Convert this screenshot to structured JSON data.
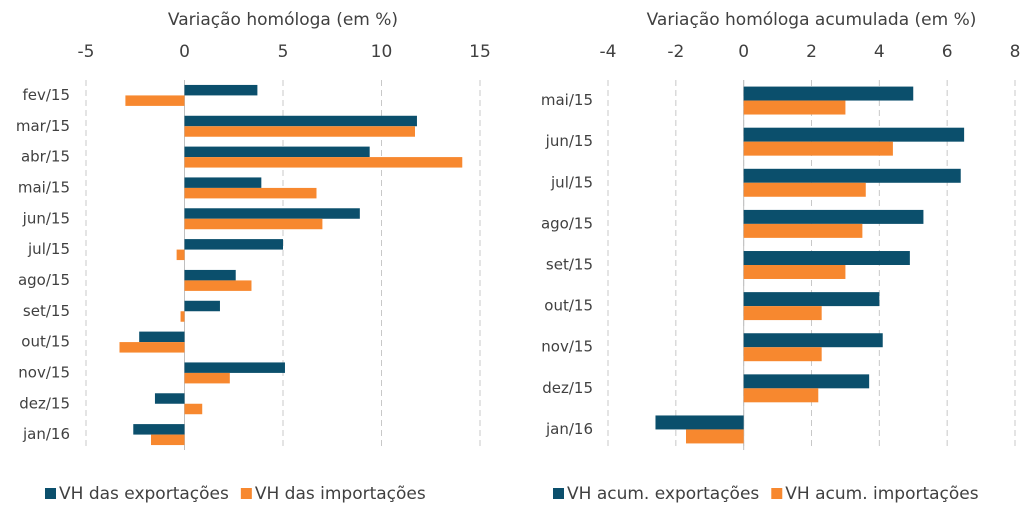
{
  "chart_data": [
    {
      "type": "hbar",
      "x_label": "Variação homóloga (em %)",
      "categories": [
        "fev/15",
        "mar/15",
        "abr/15",
        "mai/15",
        "jun/15",
        "jul/15",
        "ago/15",
        "set/15",
        "out/15",
        "nov/15",
        "dez/15",
        "jan/16"
      ],
      "series": [
        {
          "name": "VH das exportações",
          "color": "#0b4f6c",
          "values": [
            3.7,
            11.8,
            9.4,
            3.9,
            8.9,
            5.0,
            2.6,
            1.8,
            -2.3,
            5.1,
            -1.5,
            -2.6
          ]
        },
        {
          "name": "VH das importações",
          "color": "#f7882f",
          "values": [
            -3.0,
            11.7,
            14.1,
            6.7,
            7.0,
            -0.4,
            3.4,
            -0.2,
            -3.3,
            2.3,
            0.9,
            -1.7
          ]
        }
      ],
      "xlim": [
        -5,
        15
      ],
      "xticks": [
        -5,
        0,
        5,
        10,
        15
      ],
      "grid": true
    },
    {
      "type": "hbar",
      "x_label": "Variação homóloga acumulada (em %)",
      "categories": [
        "mai/15",
        "jun/15",
        "jul/15",
        "ago/15",
        "set/15",
        "out/15",
        "nov/15",
        "dez/15",
        "jan/16"
      ],
      "series": [
        {
          "name": "VH acum. exportações",
          "color": "#0b4f6c",
          "values": [
            5.0,
            6.5,
            6.4,
            5.3,
            4.9,
            4.0,
            4.1,
            3.7,
            -2.6
          ]
        },
        {
          "name": "VH acum. importações",
          "color": "#f7882f",
          "values": [
            3.0,
            4.4,
            3.6,
            3.5,
            3.0,
            2.3,
            2.3,
            2.2,
            -1.7
          ]
        }
      ],
      "xlim": [
        -4,
        8
      ],
      "xticks": [
        -4,
        -2,
        0,
        2,
        4,
        6,
        8
      ],
      "grid": true
    }
  ]
}
